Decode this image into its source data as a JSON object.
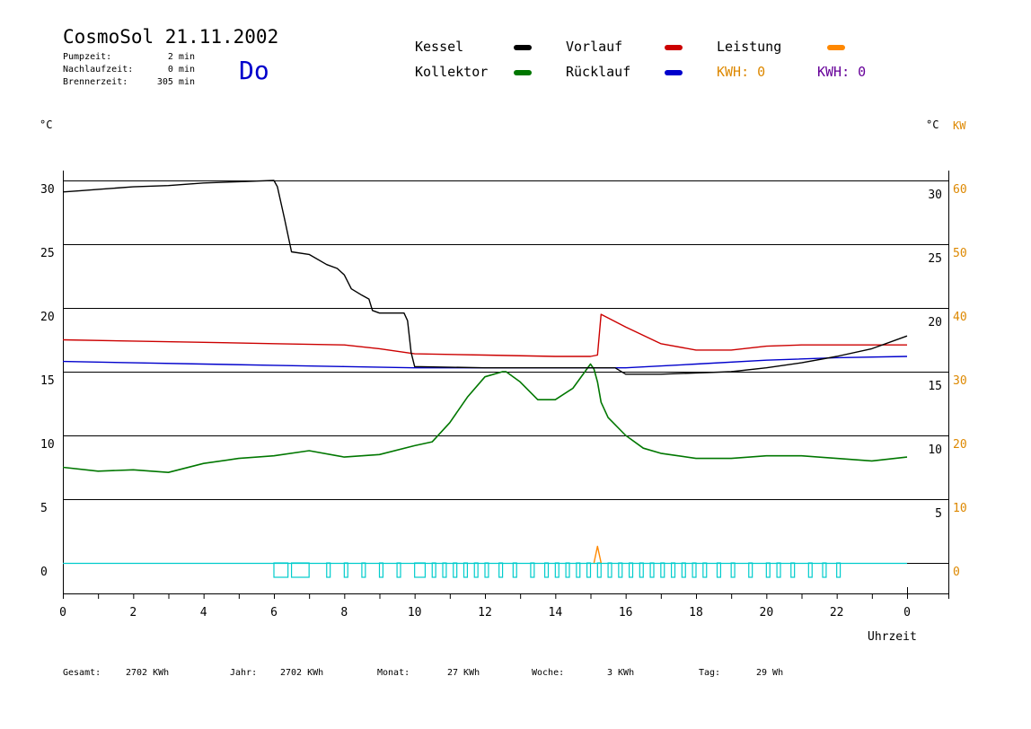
{
  "header": {
    "title": "CosmoSol 21.11.2002",
    "day": "Do",
    "stats": [
      {
        "label": "Pumpzeit:",
        "value": "2 min"
      },
      {
        "label": "Nachlaufzeit:",
        "value": "0 min"
      },
      {
        "label": "Brennerzeit:",
        "value": "305 min"
      }
    ]
  },
  "legend": {
    "kessel": "Kessel",
    "kollektor": "Kollektor",
    "vorlauf": "Vorlauf",
    "ruecklauf": "Rücklauf",
    "leistung": "Leistung",
    "kwh1": "KWH: 0",
    "kwh2": "KWH: 0"
  },
  "colors": {
    "kessel": "#000000",
    "kollektor": "#007700",
    "vorlauf": "#cc0000",
    "ruecklauf": "#0000cc",
    "leistung": "#ff8800",
    "kwh2": "#660099",
    "pump": "#00cccc"
  },
  "footer": [
    {
      "label": "Gesamt:",
      "value": "2702 KWh"
    },
    {
      "label": "Jahr:",
      "value": "2702 KWh"
    },
    {
      "label": "Monat:",
      "value": "27 KWh"
    },
    {
      "label": "Woche:",
      "value": "3 KWh"
    },
    {
      "label": "Tag:",
      "value": "29 Wh"
    }
  ],
  "chart_data": {
    "type": "line",
    "xlabel": "Uhrzeit",
    "ylabel_left": "°C",
    "ylabel_right": "°C",
    "ylabel_right2": "KW",
    "x_ticks": [
      "0",
      "2",
      "4",
      "6",
      "8",
      "10",
      "12",
      "14",
      "16",
      "18",
      "20",
      "22",
      "0"
    ],
    "y_ticks_left": [
      "30",
      "25",
      "20",
      "15",
      "10",
      "5",
      "0"
    ],
    "y_ticks_right": [
      "30",
      "25",
      "20",
      "15",
      "10",
      "5"
    ],
    "y_ticks_kw": [
      "60",
      "50",
      "40",
      "30",
      "20",
      "10",
      "0"
    ],
    "xlim": [
      0,
      24
    ],
    "ylim": [
      0,
      30
    ],
    "grid": true,
    "series": [
      {
        "name": "Kessel",
        "x": [
          0,
          0.5,
          1,
          2,
          3,
          4,
          5,
          5.5,
          6,
          6.1,
          6.3,
          6.5,
          7,
          7.5,
          7.8,
          8,
          8.2,
          8.5,
          8.7,
          8.8,
          9,
          9.5,
          9.7,
          9.8,
          9.9,
          10,
          12,
          14,
          15,
          15.2,
          15.7,
          16,
          17,
          18,
          19,
          20,
          21,
          22,
          23,
          24
        ],
        "y": [
          29.1,
          29.2,
          29.3,
          29.5,
          29.6,
          29.8,
          29.9,
          29.95,
          30,
          29.5,
          27,
          24.4,
          24.2,
          23.4,
          23.1,
          22.6,
          21.5,
          21,
          20.7,
          19.8,
          19.6,
          19.6,
          19.6,
          19,
          16.5,
          15.4,
          15.3,
          15.3,
          15.3,
          15.3,
          15.3,
          14.8,
          14.8,
          14.9,
          15,
          15.3,
          15.7,
          16.2,
          16.8,
          17.8
        ]
      },
      {
        "name": "Vorlauf",
        "x": [
          0,
          2,
          4,
          6,
          8,
          9,
          10,
          12,
          14,
          15,
          15.2,
          15.3,
          16,
          17,
          18,
          19,
          20,
          21,
          22,
          23,
          24
        ],
        "y": [
          17.5,
          17.4,
          17.3,
          17.2,
          17.1,
          16.8,
          16.4,
          16.3,
          16.2,
          16.2,
          16.3,
          19.5,
          18.5,
          17.2,
          16.7,
          16.7,
          17,
          17.1,
          17.1,
          17.1,
          17.1
        ]
      },
      {
        "name": "Rücklauf",
        "x": [
          0,
          2,
          4,
          6,
          8,
          10,
          12,
          14,
          15,
          15.2,
          16,
          18,
          20,
          22,
          24
        ],
        "y": [
          15.8,
          15.7,
          15.6,
          15.5,
          15.4,
          15.3,
          15.3,
          15.3,
          15.3,
          15.3,
          15.3,
          15.6,
          15.9,
          16.1,
          16.2
        ]
      },
      {
        "name": "Kollektor",
        "x": [
          0,
          1,
          2,
          3,
          4,
          5,
          6,
          7,
          8,
          9,
          10,
          10.5,
          11,
          11.5,
          12,
          12.5,
          12.6,
          13,
          13.5,
          14,
          14.5,
          15,
          15.1,
          15.2,
          15.3,
          15.5,
          16,
          16.5,
          17,
          18,
          19,
          20,
          21,
          22,
          23,
          24
        ],
        "y": [
          7.5,
          7.2,
          7.3,
          7.1,
          7.8,
          8.2,
          8.4,
          8.8,
          8.3,
          8.5,
          9.2,
          9.5,
          11,
          13,
          14.6,
          15,
          15,
          14.2,
          12.8,
          12.8,
          13.7,
          15.6,
          15.2,
          14.2,
          12.6,
          11.4,
          10,
          9,
          8.6,
          8.2,
          8.2,
          8.4,
          8.4,
          8.2,
          8,
          8.3
        ]
      },
      {
        "name": "Leistung",
        "x": [
          15.1,
          15.2,
          15.3
        ],
        "y": [
          0,
          1.3,
          0
        ]
      }
    ],
    "pump_on_intervals": [
      [
        6,
        6.4
      ],
      [
        6.5,
        7
      ],
      [
        7.5,
        7.6
      ],
      [
        8,
        8.1
      ],
      [
        8.5,
        8.6
      ],
      [
        9,
        9.1
      ],
      [
        9.5,
        9.6
      ],
      [
        10,
        10.3
      ],
      [
        10.5,
        10.6
      ],
      [
        10.8,
        10.9
      ],
      [
        11.1,
        11.2
      ],
      [
        11.4,
        11.5
      ],
      [
        11.7,
        11.8
      ],
      [
        12,
        12.1
      ],
      [
        12.4,
        12.5
      ],
      [
        12.8,
        12.9
      ],
      [
        13.3,
        13.4
      ],
      [
        13.7,
        13.8
      ],
      [
        14,
        14.1
      ],
      [
        14.3,
        14.4
      ],
      [
        14.6,
        14.7
      ],
      [
        14.9,
        15
      ],
      [
        15.2,
        15.3
      ],
      [
        15.5,
        15.6
      ],
      [
        15.8,
        15.9
      ],
      [
        16.1,
        16.2
      ],
      [
        16.4,
        16.5
      ],
      [
        16.7,
        16.8
      ],
      [
        17,
        17.1
      ],
      [
        17.3,
        17.4
      ],
      [
        17.6,
        17.7
      ],
      [
        17.9,
        18
      ],
      [
        18.2,
        18.3
      ],
      [
        18.6,
        18.7
      ],
      [
        19,
        19.1
      ],
      [
        19.5,
        19.6
      ],
      [
        20,
        20.1
      ],
      [
        20.3,
        20.4
      ],
      [
        20.7,
        20.8
      ],
      [
        21.2,
        21.3
      ],
      [
        21.6,
        21.7
      ],
      [
        22,
        22.1
      ]
    ]
  }
}
